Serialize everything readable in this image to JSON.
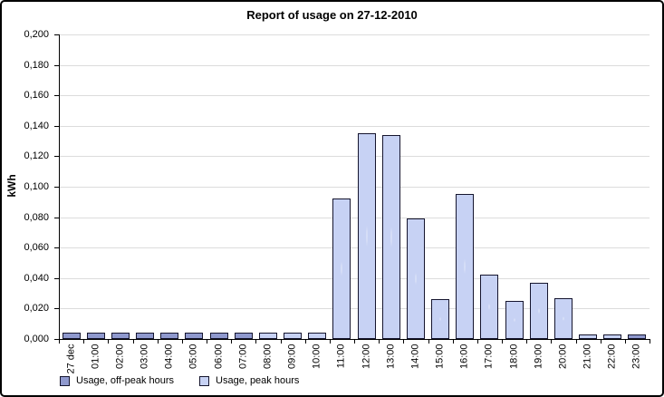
{
  "window": {
    "background": "#ffffff",
    "border_color": "#000000"
  },
  "chart_data": {
    "type": "bar",
    "title": "Report of usage on 27-12-2010",
    "xlabel": "",
    "ylabel": "kWh",
    "ylim": [
      0,
      0.2
    ],
    "ytick_step": 0.02,
    "ytick_labels": [
      "0,000",
      "0,020",
      "0,040",
      "0,060",
      "0,080",
      "0,100",
      "0,120",
      "0,140",
      "0,160",
      "0,180",
      "0,200"
    ],
    "grid": "horizontal",
    "gridline_color": "#dcdcdc",
    "legend_position": "bottom-left",
    "categories": [
      "27 dec",
      "01:00",
      "02:00",
      "03:00",
      "04:00",
      "05:00",
      "06:00",
      "07:00",
      "08:00",
      "09:00",
      "10:00",
      "11:00",
      "12:00",
      "13:00",
      "14:00",
      "15:00",
      "16:00",
      "17:00",
      "18:00",
      "19:00",
      "20:00",
      "21:00",
      "22:00",
      "23:00"
    ],
    "series": [
      {
        "name": "Usage, off-peak hours",
        "color": "#8f99ce"
      },
      {
        "name": "Usage, peak hours",
        "color": "#c7d2f4"
      }
    ],
    "values": [
      0.004,
      0.004,
      0.004,
      0.004,
      0.004,
      0.004,
      0.004,
      0.004,
      0.004,
      0.004,
      0.004,
      0.092,
      0.135,
      0.134,
      0.079,
      0.026,
      0.095,
      0.042,
      0.025,
      0.037,
      0.027,
      0.003,
      0.003,
      0.003
    ],
    "series_index": [
      0,
      0,
      0,
      0,
      0,
      0,
      0,
      0,
      1,
      1,
      1,
      1,
      1,
      1,
      1,
      1,
      1,
      1,
      1,
      1,
      1,
      1,
      1,
      0
    ]
  }
}
